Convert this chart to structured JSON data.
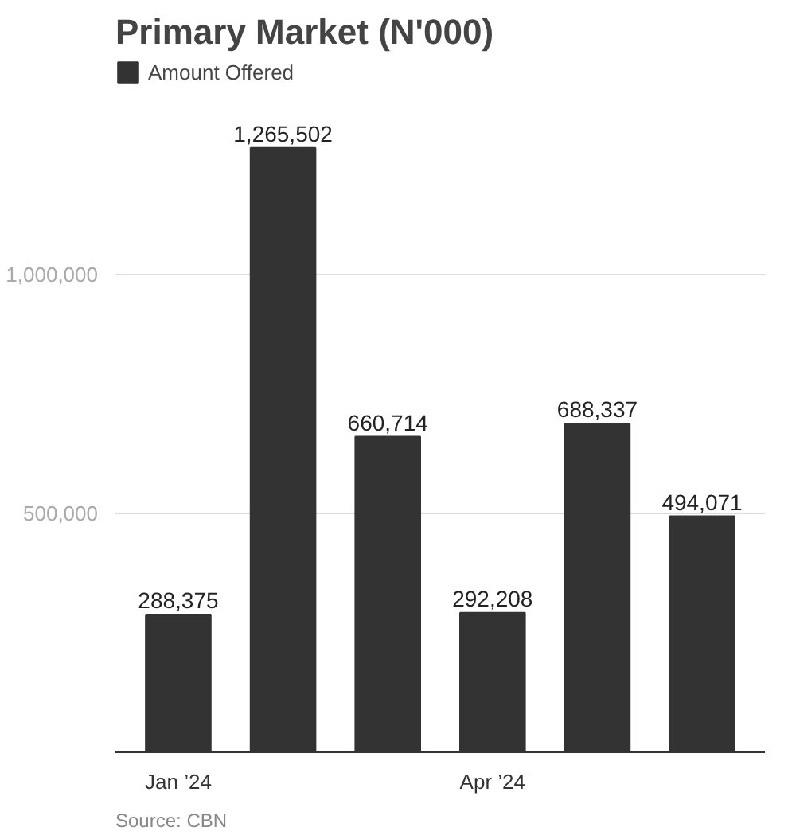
{
  "chart_data": {
    "type": "bar",
    "title": "Primary Market (N'000)",
    "categories": [
      "Jan ’24",
      null,
      null,
      "Apr ’24",
      null,
      null
    ],
    "series": [
      {
        "name": "Amount Offered",
        "color": "#333333",
        "values": [
          288375,
          1265502,
          660714,
          292208,
          688337,
          494071
        ],
        "value_labels": [
          "288,375",
          "1,265,502",
          "660,714",
          "292,208",
          "688,337",
          "494,071"
        ]
      }
    ],
    "ylim": [
      0,
      1450000
    ],
    "yticks": [
      {
        "value": 0,
        "label": null
      },
      {
        "value": 500000,
        "label": "500,000"
      },
      {
        "value": 1000000,
        "label": "1,000,000"
      }
    ],
    "grid": "y",
    "legend": "top left",
    "annotations": [
      "Source: CBN"
    ]
  }
}
